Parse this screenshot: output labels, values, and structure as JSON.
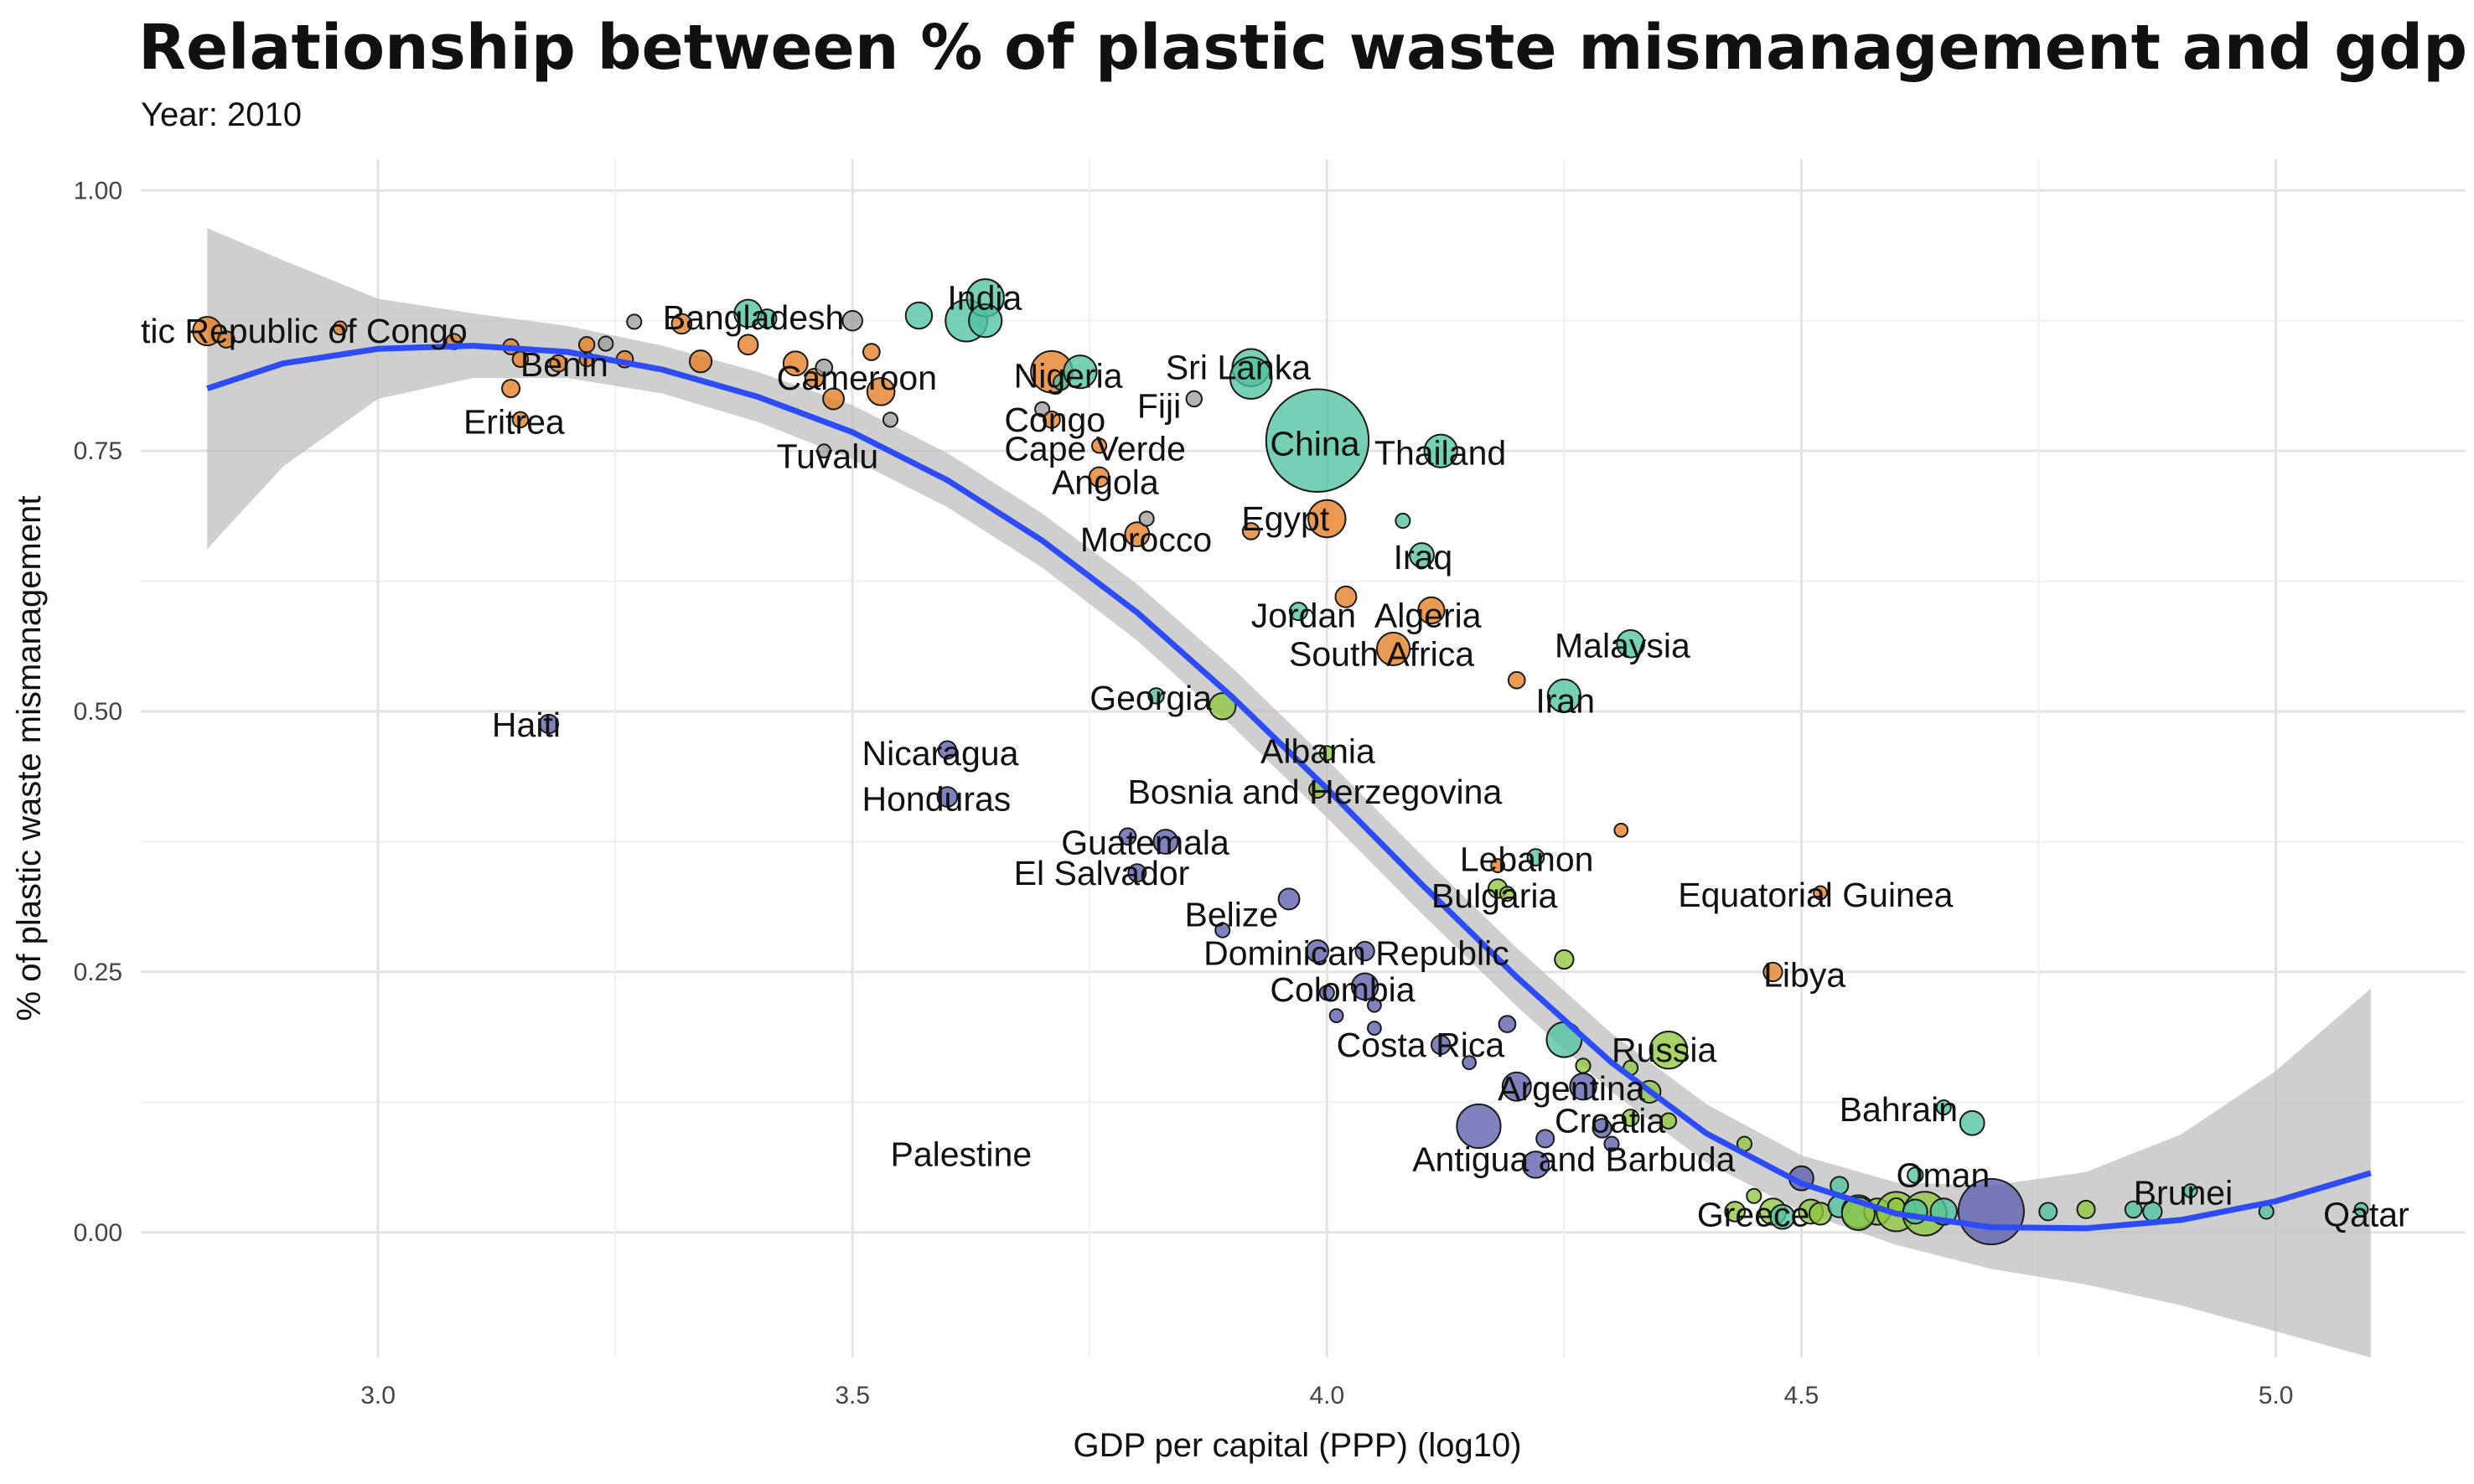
{
  "chart_data": {
    "type": "scatter",
    "title": "Relationship between % of plastic waste mismanagement and gdp per capita",
    "subtitle": "Year: 2010",
    "xlabel": "GDP per capital (PPP) (log10)",
    "ylabel": "% of plastic waste mismanagement",
    "xlim": [
      2.75,
      5.2
    ],
    "ylim": [
      -0.12,
      1.03
    ],
    "x_ticks": [
      "3.0",
      "3.5",
      "4.0",
      "4.5",
      "5.0"
    ],
    "y_ticks": [
      "0.00",
      "0.25",
      "0.50",
      "0.75",
      "1.00"
    ],
    "grid": true,
    "legend": "none",
    "colors": {
      "africa": "#e67e22",
      "asia": "#4fc3a1",
      "americas": "#5c5fad",
      "europe": "#8ec63f",
      "other": "#9e9e9e",
      "trend": "#2b4cf7",
      "band": "#bfbfbf"
    },
    "trend": {
      "x": [
        2.82,
        2.9,
        3.0,
        3.1,
        3.2,
        3.3,
        3.4,
        3.5,
        3.6,
        3.7,
        3.8,
        3.9,
        4.0,
        4.1,
        4.2,
        4.3,
        4.4,
        4.5,
        4.6,
        4.7,
        4.8,
        4.9,
        5.0,
        5.1
      ],
      "y": [
        0.81,
        0.834,
        0.848,
        0.851,
        0.845,
        0.828,
        0.802,
        0.768,
        0.722,
        0.664,
        0.595,
        0.514,
        0.426,
        0.334,
        0.245,
        0.163,
        0.095,
        0.047,
        0.018,
        0.005,
        0.004,
        0.012,
        0.03,
        0.057
      ],
      "lower": [
        0.656,
        0.735,
        0.8,
        0.82,
        0.82,
        0.805,
        0.778,
        0.742,
        0.696,
        0.638,
        0.568,
        0.486,
        0.398,
        0.306,
        0.217,
        0.135,
        0.067,
        0.02,
        -0.012,
        -0.035,
        -0.05,
        -0.07,
        -0.095,
        -0.12
      ],
      "upper": [
        0.964,
        0.933,
        0.896,
        0.882,
        0.87,
        0.851,
        0.826,
        0.794,
        0.748,
        0.69,
        0.622,
        0.542,
        0.454,
        0.362,
        0.273,
        0.191,
        0.123,
        0.074,
        0.048,
        0.045,
        0.058,
        0.094,
        0.155,
        0.234
      ]
    },
    "points": [
      {
        "x": 2.82,
        "y": 0.865,
        "s": 1.0,
        "r": "africa"
      },
      {
        "x": 2.84,
        "y": 0.857,
        "s": 0.45,
        "r": "africa"
      },
      {
        "x": 2.96,
        "y": 0.868,
        "s": 0.3,
        "r": "africa"
      },
      {
        "x": 3.08,
        "y": 0.855,
        "s": 0.4,
        "r": "africa"
      },
      {
        "x": 3.14,
        "y": 0.85,
        "s": 0.4,
        "r": "africa"
      },
      {
        "x": 3.15,
        "y": 0.838,
        "s": 0.4,
        "r": "africa"
      },
      {
        "x": 3.14,
        "y": 0.81,
        "s": 0.5,
        "r": "africa"
      },
      {
        "x": 3.15,
        "y": 0.78,
        "s": 0.4,
        "r": "africa"
      },
      {
        "x": 3.19,
        "y": 0.834,
        "s": 0.45,
        "r": "africa"
      },
      {
        "x": 3.22,
        "y": 0.852,
        "s": 0.4,
        "r": "africa"
      },
      {
        "x": 3.22,
        "y": 0.838,
        "s": 0.35,
        "r": "africa"
      },
      {
        "x": 3.24,
        "y": 0.853,
        "s": 0.35,
        "r": "other"
      },
      {
        "x": 3.26,
        "y": 0.838,
        "s": 0.45,
        "r": "africa"
      },
      {
        "x": 3.27,
        "y": 0.874,
        "s": 0.35,
        "r": "other"
      },
      {
        "x": 3.32,
        "y": 0.872,
        "s": 0.6,
        "r": "africa"
      },
      {
        "x": 3.34,
        "y": 0.836,
        "s": 0.7,
        "r": "africa"
      },
      {
        "x": 3.39,
        "y": 0.852,
        "s": 0.6,
        "r": "africa"
      },
      {
        "x": 3.39,
        "y": 0.882,
        "s": 0.95,
        "r": "asia"
      },
      {
        "x": 3.41,
        "y": 0.877,
        "s": 0.55,
        "r": "asia"
      },
      {
        "x": 3.44,
        "y": 0.834,
        "s": 0.8,
        "r": "africa"
      },
      {
        "x": 3.46,
        "y": 0.82,
        "s": 0.55,
        "r": "africa"
      },
      {
        "x": 3.47,
        "y": 0.83,
        "s": 0.45,
        "r": "other"
      },
      {
        "x": 3.47,
        "y": 0.75,
        "s": 0.3,
        "r": "other"
      },
      {
        "x": 3.48,
        "y": 0.8,
        "s": 0.65,
        "r": "africa"
      },
      {
        "x": 3.5,
        "y": 0.875,
        "s": 0.6,
        "r": "other"
      },
      {
        "x": 3.52,
        "y": 0.845,
        "s": 0.45,
        "r": "africa"
      },
      {
        "x": 3.53,
        "y": 0.807,
        "s": 0.95,
        "r": "africa"
      },
      {
        "x": 3.54,
        "y": 0.78,
        "s": 0.35,
        "r": "other"
      },
      {
        "x": 3.57,
        "y": 0.88,
        "s": 0.9,
        "r": "asia"
      },
      {
        "x": 3.62,
        "y": 0.875,
        "s": 1.6,
        "r": "asia"
      },
      {
        "x": 3.64,
        "y": 0.897,
        "s": 1.4,
        "r": "asia"
      },
      {
        "x": 3.64,
        "y": 0.875,
        "s": 1.2,
        "r": "asia"
      },
      {
        "x": 3.71,
        "y": 0.826,
        "s": 1.6,
        "r": "africa"
      },
      {
        "x": 3.7,
        "y": 0.79,
        "s": 0.35,
        "r": "other"
      },
      {
        "x": 3.72,
        "y": 0.816,
        "s": 0.4,
        "r": "asia"
      },
      {
        "x": 3.74,
        "y": 0.826,
        "s": 1.2,
        "r": "asia"
      },
      {
        "x": 3.71,
        "y": 0.78,
        "s": 0.45,
        "r": "africa"
      },
      {
        "x": 3.76,
        "y": 0.755,
        "s": 0.35,
        "r": "africa"
      },
      {
        "x": 3.76,
        "y": 0.725,
        "s": 0.6,
        "r": "africa"
      },
      {
        "x": 3.8,
        "y": 0.67,
        "s": 0.8,
        "r": "africa"
      },
      {
        "x": 3.81,
        "y": 0.685,
        "s": 0.35,
        "r": "other"
      },
      {
        "x": 3.86,
        "y": 0.8,
        "s": 0.4,
        "r": "other"
      },
      {
        "x": 3.92,
        "y": 0.673,
        "s": 0.45,
        "r": "africa"
      },
      {
        "x": 3.92,
        "y": 0.83,
        "s": 1.4,
        "r": "asia"
      },
      {
        "x": 3.92,
        "y": 0.82,
        "s": 1.6,
        "r": "asia"
      },
      {
        "x": 3.99,
        "y": 0.76,
        "s": 4.4,
        "r": "asia"
      },
      {
        "x": 4.0,
        "y": 0.685,
        "s": 1.4,
        "r": "africa"
      },
      {
        "x": 4.08,
        "y": 0.683,
        "s": 0.35,
        "r": "asia"
      },
      {
        "x": 4.12,
        "y": 0.75,
        "s": 1.2,
        "r": "asia"
      },
      {
        "x": 4.1,
        "y": 0.65,
        "s": 0.8,
        "r": "asia"
      },
      {
        "x": 4.02,
        "y": 0.61,
        "s": 0.65,
        "r": "africa"
      },
      {
        "x": 3.97,
        "y": 0.596,
        "s": 0.5,
        "r": "asia"
      },
      {
        "x": 4.11,
        "y": 0.597,
        "s": 0.9,
        "r": "africa"
      },
      {
        "x": 4.07,
        "y": 0.56,
        "s": 1.2,
        "r": "africa"
      },
      {
        "x": 4.2,
        "y": 0.53,
        "s": 0.45,
        "r": "africa"
      },
      {
        "x": 4.32,
        "y": 0.565,
        "s": 0.95,
        "r": "asia"
      },
      {
        "x": 4.25,
        "y": 0.515,
        "s": 1.2,
        "r": "asia"
      },
      {
        "x": 3.82,
        "y": 0.515,
        "s": 0.4,
        "r": "asia"
      },
      {
        "x": 3.89,
        "y": 0.505,
        "s": 0.9,
        "r": "europe"
      },
      {
        "x": 3.18,
        "y": 0.488,
        "s": 0.55,
        "r": "americas"
      },
      {
        "x": 3.6,
        "y": 0.463,
        "s": 0.5,
        "r": "americas"
      },
      {
        "x": 3.6,
        "y": 0.418,
        "s": 0.6,
        "r": "americas"
      },
      {
        "x": 4.0,
        "y": 0.46,
        "s": 0.35,
        "r": "europe"
      },
      {
        "x": 3.99,
        "y": 0.425,
        "s": 0.45,
        "r": "europe"
      },
      {
        "x": 3.79,
        "y": 0.38,
        "s": 0.45,
        "r": "americas"
      },
      {
        "x": 3.83,
        "y": 0.375,
        "s": 0.8,
        "r": "americas"
      },
      {
        "x": 3.8,
        "y": 0.345,
        "s": 0.5,
        "r": "americas"
      },
      {
        "x": 3.96,
        "y": 0.32,
        "s": 0.65,
        "r": "americas"
      },
      {
        "x": 3.89,
        "y": 0.29,
        "s": 0.35,
        "r": "americas"
      },
      {
        "x": 4.31,
        "y": 0.386,
        "s": 0.3,
        "r": "africa"
      },
      {
        "x": 4.22,
        "y": 0.36,
        "s": 0.45,
        "r": "asia"
      },
      {
        "x": 4.18,
        "y": 0.352,
        "s": 0.3,
        "r": "africa"
      },
      {
        "x": 4.18,
        "y": 0.33,
        "s": 0.55,
        "r": "europe"
      },
      {
        "x": 4.19,
        "y": 0.325,
        "s": 0.35,
        "r": "europe"
      },
      {
        "x": 4.52,
        "y": 0.326,
        "s": 0.3,
        "r": "africa"
      },
      {
        "x": 3.99,
        "y": 0.27,
        "s": 0.7,
        "r": "americas"
      },
      {
        "x": 4.04,
        "y": 0.27,
        "s": 0.55,
        "r": "americas"
      },
      {
        "x": 4.04,
        "y": 0.236,
        "s": 0.9,
        "r": "americas"
      },
      {
        "x": 4.0,
        "y": 0.23,
        "s": 0.35,
        "r": "americas"
      },
      {
        "x": 4.01,
        "y": 0.208,
        "s": 0.3,
        "r": "americas"
      },
      {
        "x": 4.05,
        "y": 0.218,
        "s": 0.3,
        "r": "americas"
      },
      {
        "x": 4.05,
        "y": 0.196,
        "s": 0.3,
        "r": "americas"
      },
      {
        "x": 4.12,
        "y": 0.18,
        "s": 0.55,
        "r": "americas"
      },
      {
        "x": 4.15,
        "y": 0.163,
        "s": 0.3,
        "r": "americas"
      },
      {
        "x": 4.25,
        "y": 0.262,
        "s": 0.55,
        "r": "europe"
      },
      {
        "x": 4.47,
        "y": 0.25,
        "s": 0.55,
        "r": "africa"
      },
      {
        "x": 4.19,
        "y": 0.2,
        "s": 0.45,
        "r": "americas"
      },
      {
        "x": 4.25,
        "y": 0.185,
        "s": 1.3,
        "r": "asia"
      },
      {
        "x": 4.36,
        "y": 0.175,
        "s": 1.4,
        "r": "europe"
      },
      {
        "x": 4.27,
        "y": 0.16,
        "s": 0.35,
        "r": "europe"
      },
      {
        "x": 4.32,
        "y": 0.158,
        "s": 0.35,
        "r": "europe"
      },
      {
        "x": 4.2,
        "y": 0.14,
        "s": 1.0,
        "r": "americas"
      },
      {
        "x": 4.27,
        "y": 0.14,
        "s": 0.9,
        "r": "americas"
      },
      {
        "x": 4.34,
        "y": 0.135,
        "s": 0.7,
        "r": "europe"
      },
      {
        "x": 4.32,
        "y": 0.11,
        "s": 0.45,
        "r": "europe"
      },
      {
        "x": 4.29,
        "y": 0.1,
        "s": 0.55,
        "r": "americas"
      },
      {
        "x": 4.16,
        "y": 0.102,
        "s": 1.7,
        "r": "americas"
      },
      {
        "x": 4.23,
        "y": 0.09,
        "s": 0.5,
        "r": "americas"
      },
      {
        "x": 4.3,
        "y": 0.085,
        "s": 0.35,
        "r": "americas"
      },
      {
        "x": 4.36,
        "y": 0.107,
        "s": 0.4,
        "r": "europe"
      },
      {
        "x": 4.44,
        "y": 0.085,
        "s": 0.35,
        "r": "europe"
      },
      {
        "x": 4.22,
        "y": 0.065,
        "s": 0.9,
        "r": "americas"
      },
      {
        "x": 4.65,
        "y": 0.12,
        "s": 0.35,
        "r": "asia"
      },
      {
        "x": 4.68,
        "y": 0.105,
        "s": 0.8,
        "r": "asia"
      },
      {
        "x": 4.5,
        "y": 0.052,
        "s": 0.8,
        "r": "americas"
      },
      {
        "x": 4.54,
        "y": 0.045,
        "s": 0.5,
        "r": "asia"
      },
      {
        "x": 4.62,
        "y": 0.055,
        "s": 0.4,
        "r": "asia"
      },
      {
        "x": 4.45,
        "y": 0.035,
        "s": 0.35,
        "r": "europe"
      },
      {
        "x": 4.43,
        "y": 0.02,
        "s": 0.6,
        "r": "europe"
      },
      {
        "x": 4.47,
        "y": 0.02,
        "s": 0.9,
        "r": "europe"
      },
      {
        "x": 4.48,
        "y": 0.015,
        "s": 0.8,
        "r": "asia"
      },
      {
        "x": 4.51,
        "y": 0.02,
        "s": 0.8,
        "r": "europe"
      },
      {
        "x": 4.52,
        "y": 0.018,
        "s": 0.7,
        "r": "europe"
      },
      {
        "x": 4.54,
        "y": 0.025,
        "s": 0.7,
        "r": "asia"
      },
      {
        "x": 4.56,
        "y": 0.02,
        "s": 1.2,
        "r": "asia"
      },
      {
        "x": 4.58,
        "y": 0.02,
        "s": 0.9,
        "r": "europe"
      },
      {
        "x": 4.56,
        "y": 0.018,
        "s": 1.2,
        "r": "europe"
      },
      {
        "x": 4.6,
        "y": 0.02,
        "s": 1.5,
        "r": "europe"
      },
      {
        "x": 4.63,
        "y": 0.018,
        "s": 1.7,
        "r": "europe"
      },
      {
        "x": 4.6,
        "y": 0.025,
        "s": 0.45,
        "r": "europe"
      },
      {
        "x": 4.62,
        "y": 0.02,
        "s": 0.8,
        "r": "asia"
      },
      {
        "x": 4.65,
        "y": 0.02,
        "s": 0.9,
        "r": "asia"
      },
      {
        "x": 4.7,
        "y": 0.02,
        "s": 2.7,
        "r": "americas"
      },
      {
        "x": 4.76,
        "y": 0.02,
        "s": 0.5,
        "r": "asia"
      },
      {
        "x": 4.8,
        "y": 0.022,
        "s": 0.5,
        "r": "europe"
      },
      {
        "x": 4.85,
        "y": 0.022,
        "s": 0.45,
        "r": "asia"
      },
      {
        "x": 4.87,
        "y": 0.02,
        "s": 0.55,
        "r": "asia"
      },
      {
        "x": 4.91,
        "y": 0.04,
        "s": 0.3,
        "r": "asia"
      },
      {
        "x": 4.99,
        "y": 0.02,
        "s": 0.35,
        "r": "asia"
      },
      {
        "x": 5.09,
        "y": 0.022,
        "s": 0.3,
        "r": "asia"
      }
    ],
    "labels": [
      {
        "text": "tic Republic of Congo",
        "x": 2.75,
        "y": 0.865
      },
      {
        "text": "Bangladesh",
        "x": 3.3,
        "y": 0.878
      },
      {
        "text": "Benin",
        "x": 3.15,
        "y": 0.833
      },
      {
        "text": "Cameroon",
        "x": 3.42,
        "y": 0.82
      },
      {
        "text": "Eritrea",
        "x": 3.09,
        "y": 0.778
      },
      {
        "text": "Tuvalu",
        "x": 3.42,
        "y": 0.745
      },
      {
        "text": "India",
        "x": 3.6,
        "y": 0.897
      },
      {
        "text": "Nigeria",
        "x": 3.67,
        "y": 0.822
      },
      {
        "text": "Congo",
        "x": 3.66,
        "y": 0.78
      },
      {
        "text": "Cape Verde",
        "x": 3.66,
        "y": 0.752
      },
      {
        "text": "Angola",
        "x": 3.71,
        "y": 0.72
      },
      {
        "text": "Morocco",
        "x": 3.74,
        "y": 0.665
      },
      {
        "text": "Sri Lanka",
        "x": 3.83,
        "y": 0.83
      },
      {
        "text": "Fiji",
        "x": 3.8,
        "y": 0.793
      },
      {
        "text": "China",
        "x": 3.94,
        "y": 0.757
      },
      {
        "text": "Thailand",
        "x": 4.05,
        "y": 0.748
      },
      {
        "text": "Egypt",
        "x": 3.91,
        "y": 0.685
      },
      {
        "text": "Iraq",
        "x": 4.07,
        "y": 0.648
      },
      {
        "text": "Jordan",
        "x": 3.92,
        "y": 0.592
      },
      {
        "text": "Algeria",
        "x": 4.05,
        "y": 0.592
      },
      {
        "text": "South Africa",
        "x": 3.96,
        "y": 0.555
      },
      {
        "text": "Malaysia",
        "x": 4.24,
        "y": 0.563
      },
      {
        "text": "Iran",
        "x": 4.22,
        "y": 0.51
      },
      {
        "text": "Haiti",
        "x": 3.12,
        "y": 0.487
      },
      {
        "text": "Georgia",
        "x": 3.75,
        "y": 0.513
      },
      {
        "text": "Nicaragua",
        "x": 3.51,
        "y": 0.46
      },
      {
        "text": "Honduras",
        "x": 3.51,
        "y": 0.416
      },
      {
        "text": "Albania",
        "x": 3.93,
        "y": 0.462
      },
      {
        "text": "Bosnia and Herzegovina",
        "x": 3.79,
        "y": 0.423
      },
      {
        "text": "Guatemala",
        "x": 3.72,
        "y": 0.374
      },
      {
        "text": "El Salvador",
        "x": 3.67,
        "y": 0.345
      },
      {
        "text": "Lebanon",
        "x": 4.14,
        "y": 0.358
      },
      {
        "text": "Bulgaria",
        "x": 4.11,
        "y": 0.323
      },
      {
        "text": "Equatorial Guinea",
        "x": 4.37,
        "y": 0.324
      },
      {
        "text": "Belize",
        "x": 3.85,
        "y": 0.305
      },
      {
        "text": "Dominican Republic",
        "x": 3.87,
        "y": 0.268
      },
      {
        "text": "Libya",
        "x": 4.46,
        "y": 0.247
      },
      {
        "text": "Colombia",
        "x": 3.94,
        "y": 0.233
      },
      {
        "text": "Costa Rica",
        "x": 4.01,
        "y": 0.18
      },
      {
        "text": "Russia",
        "x": 4.3,
        "y": 0.175
      },
      {
        "text": "Argentina",
        "x": 4.18,
        "y": 0.138
      },
      {
        "text": "Croatia",
        "x": 4.24,
        "y": 0.107
      },
      {
        "text": "Bahrain",
        "x": 4.54,
        "y": 0.118
      },
      {
        "text": "Palestine",
        "x": 3.54,
        "y": 0.075
      },
      {
        "text": "Antigua and Barbuda",
        "x": 4.09,
        "y": 0.07
      },
      {
        "text": "Oman",
        "x": 4.6,
        "y": 0.055
      },
      {
        "text": "Greece",
        "x": 4.39,
        "y": 0.017
      },
      {
        "text": "Brunei",
        "x": 4.85,
        "y": 0.038
      },
      {
        "text": "Qatar",
        "x": 5.05,
        "y": 0.017
      }
    ]
  }
}
